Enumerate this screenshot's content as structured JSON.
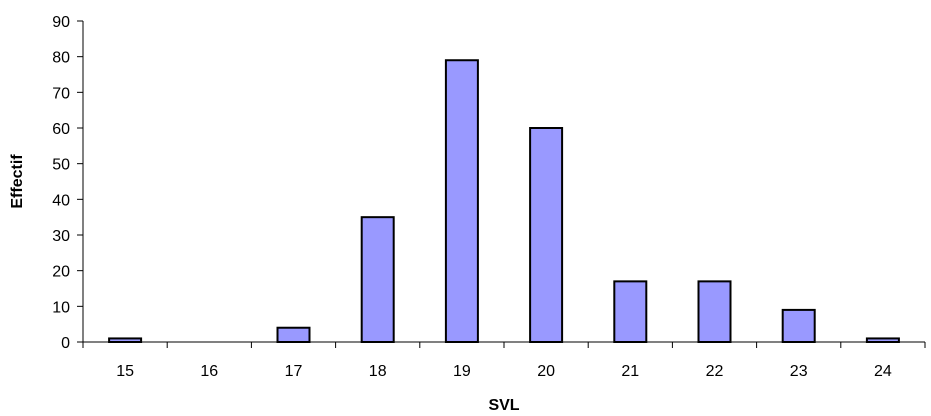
{
  "chart_data": {
    "type": "bar",
    "title": "",
    "xlabel": "SVL",
    "ylabel": "Effectif",
    "categories": [
      "15",
      "16",
      "17",
      "18",
      "19",
      "20",
      "21",
      "22",
      "23",
      "24"
    ],
    "values": [
      1,
      0,
      4,
      35,
      79,
      60,
      17,
      17,
      9,
      1
    ],
    "ylim": [
      0,
      90
    ],
    "yticks": [
      0,
      10,
      20,
      30,
      40,
      50,
      60,
      70,
      80,
      90
    ],
    "grid": false,
    "legend": "none",
    "bar_color": "#9999ff",
    "bar_edge_color": "#000000"
  }
}
